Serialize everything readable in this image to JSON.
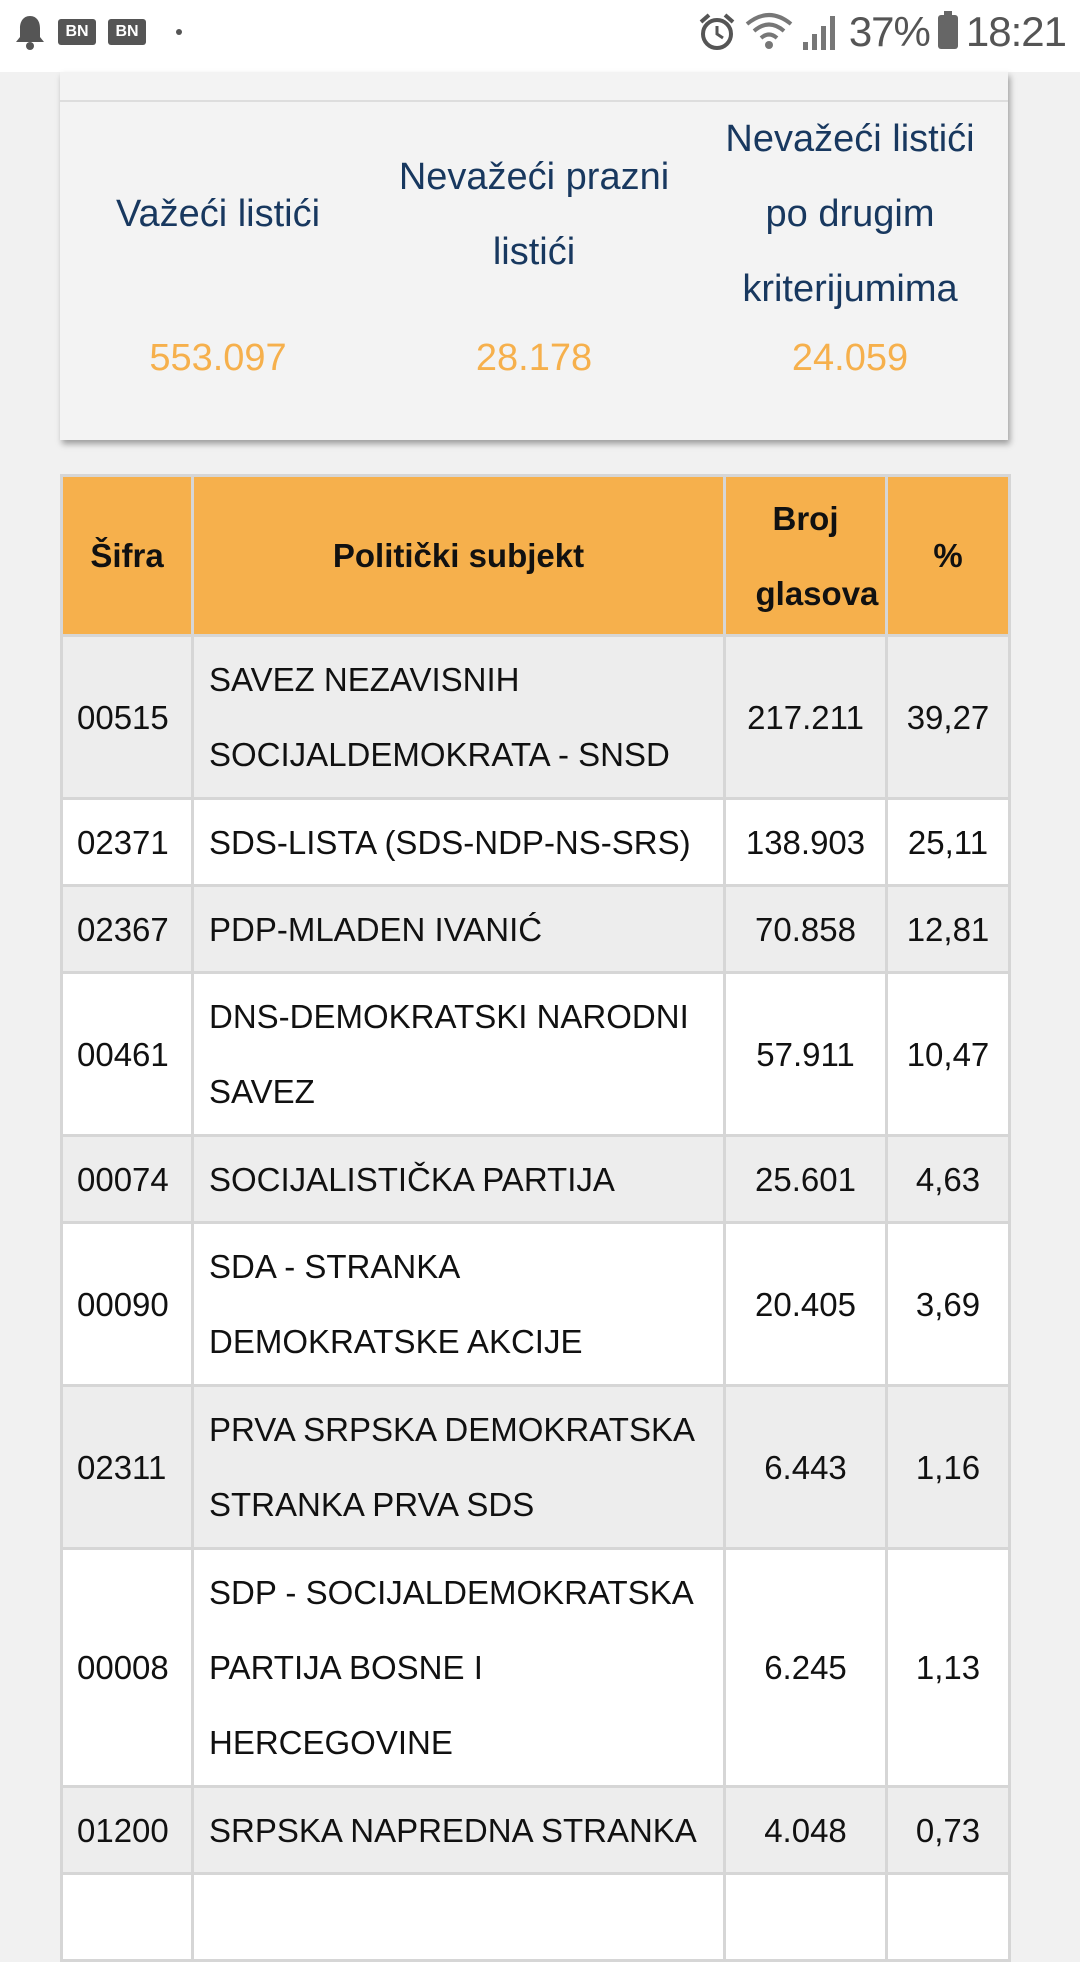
{
  "status_bar": {
    "battery": "37%",
    "time": "18:21",
    "left_icons": [
      "bell-icon",
      "bn-app-icon",
      "bn-app-icon",
      "dot-icon"
    ],
    "right_icons": [
      "alarm-icon",
      "wifi-icon",
      "signal-icon",
      "battery-icon"
    ],
    "bn_label": "BN"
  },
  "summary": {
    "columns": [
      {
        "label": "Važeći listići",
        "value": "553.097"
      },
      {
        "label": "Nevažeći prazni listići",
        "value": "28.178"
      },
      {
        "label": "Nevažeći listići po drugim kriterijumima",
        "value": "24.059"
      }
    ],
    "label_color": "#18385f",
    "value_color": "#f6b04c"
  },
  "table": {
    "header_color": "#f6b04c",
    "headers": [
      "Šifra",
      "Politički subjekt",
      "Broj glasova",
      "%"
    ],
    "rows": [
      {
        "code": "00515",
        "party": "SAVEZ NEZAVISNIH SOCIJALDEMOKRATA - SNSD",
        "votes": "217.211",
        "percent": "39,27"
      },
      {
        "code": "02371",
        "party": "SDS-LISTA (SDS-NDP-NS-SRS)",
        "votes": "138.903",
        "percent": "25,11"
      },
      {
        "code": "02367",
        "party": "PDP-MLADEN IVANIĆ",
        "votes": "70.858",
        "percent": "12,81"
      },
      {
        "code": "00461",
        "party": "DNS-DEMOKRATSKI NARODNI SAVEZ",
        "votes": "57.911",
        "percent": "10,47"
      },
      {
        "code": "00074",
        "party": "SOCIJALISTIČKA PARTIJA",
        "votes": "25.601",
        "percent": "4,63"
      },
      {
        "code": "00090",
        "party": "SDA - STRANKA DEMOKRATSKE AKCIJE",
        "votes": "20.405",
        "percent": "3,69"
      },
      {
        "code": "02311",
        "party": "PRVA SRPSKA DEMOKRATSKA STRANKA PRVA SDS",
        "votes": "6.443",
        "percent": "1,16"
      },
      {
        "code": "00008",
        "party": "SDP - SOCIJALDEMOKRATSKA PARTIJA BOSNE I HERCEGOVINE",
        "votes": "6.245",
        "percent": "1,13"
      },
      {
        "code": "01200",
        "party": "SRPSKA NAPREDNA STRANKA",
        "votes": "4.048",
        "percent": "0,73"
      }
    ]
  }
}
